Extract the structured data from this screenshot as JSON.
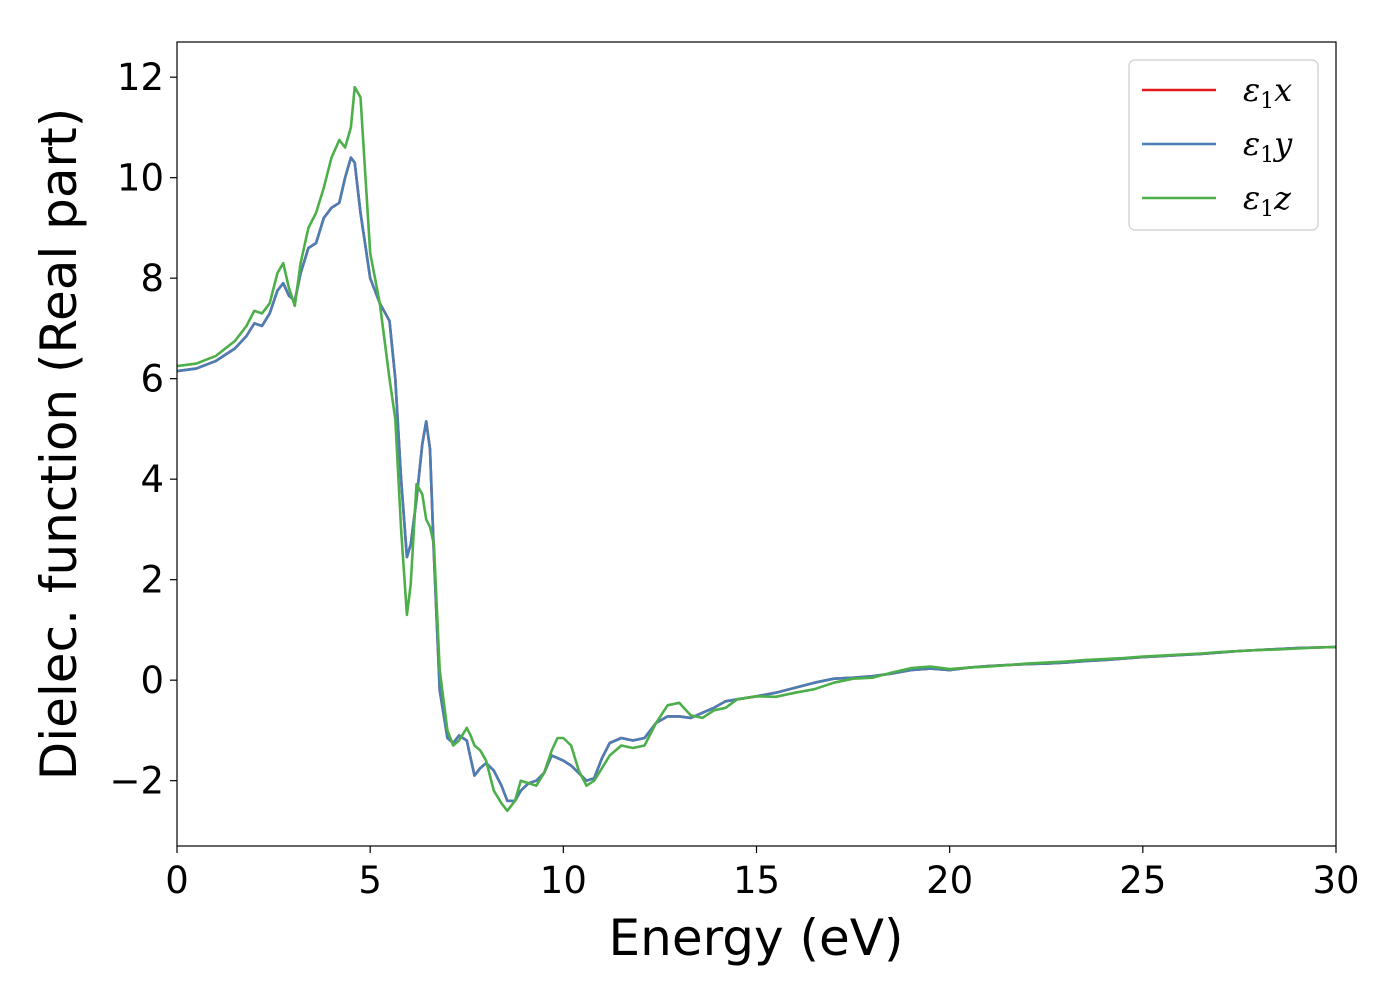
{
  "chart_data": {
    "type": "line",
    "xlabel": "Energy (eV)",
    "ylabel": "Dielec. function (Real part)",
    "xlim": [
      0,
      30
    ],
    "ylim": [
      -3.3,
      12.7
    ],
    "xticks": [
      0,
      5,
      10,
      15,
      20,
      25,
      30
    ],
    "xtick_labels": [
      "0",
      "5",
      "10",
      "15",
      "20",
      "25",
      "30"
    ],
    "yticks": [
      -2,
      0,
      2,
      4,
      6,
      8,
      10,
      12
    ],
    "ytick_labels": [
      "−2",
      "0",
      "2",
      "4",
      "6",
      "8",
      "10",
      "12"
    ],
    "grid": false,
    "legend_position": "top-right",
    "series": [
      {
        "name": "ε₁x",
        "legend": {
          "symbol": "ε",
          "sub": "1",
          "axis": "x"
        },
        "color": "#e41a1c",
        "x": [
          0,
          0.5,
          1.0,
          1.5,
          1.8,
          2.0,
          2.2,
          2.4,
          2.6,
          2.75,
          2.9,
          3.05,
          3.2,
          3.4,
          3.6,
          3.8,
          4.0,
          4.2,
          4.35,
          4.5,
          4.6,
          4.75,
          5.0,
          5.25,
          5.5,
          5.65,
          5.8,
          5.95,
          6.05,
          6.2,
          6.35,
          6.45,
          6.55,
          6.65,
          6.8,
          7.0,
          7.15,
          7.3,
          7.5,
          7.6,
          7.7,
          7.85,
          8.0,
          8.2,
          8.4,
          8.55,
          8.75,
          8.9,
          9.1,
          9.3,
          9.5,
          9.7,
          9.85,
          10.0,
          10.2,
          10.4,
          10.6,
          10.8,
          11.0,
          11.2,
          11.5,
          11.8,
          12.1,
          12.4,
          12.7,
          13.0,
          13.3,
          13.6,
          13.9,
          14.2,
          14.5,
          15.0,
          15.5,
          16.0,
          16.5,
          17.0,
          17.5,
          18.0,
          18.5,
          19.0,
          19.5,
          20.0,
          20.5,
          21.0,
          21.5,
          22.0,
          22.5,
          23.0,
          23.5,
          24.0,
          24.5,
          25.0,
          25.5,
          26.0,
          26.5,
          27.0,
          27.5,
          28.0,
          28.5,
          29.0,
          29.5,
          30.0
        ],
        "y": [
          6.15,
          6.2,
          6.35,
          6.6,
          6.85,
          7.1,
          7.05,
          7.3,
          7.75,
          7.9,
          7.65,
          7.55,
          8.1,
          8.6,
          8.7,
          9.2,
          9.4,
          9.5,
          10.0,
          10.4,
          10.3,
          9.3,
          8.0,
          7.5,
          7.15,
          6.0,
          4.0,
          2.45,
          2.7,
          3.6,
          4.7,
          5.15,
          4.6,
          2.5,
          -0.2,
          -1.15,
          -1.25,
          -1.1,
          -1.2,
          -1.55,
          -1.9,
          -1.75,
          -1.65,
          -1.8,
          -2.1,
          -2.4,
          -2.4,
          -2.2,
          -2.05,
          -2.0,
          -1.85,
          -1.5,
          -1.55,
          -1.6,
          -1.7,
          -1.85,
          -2.0,
          -1.95,
          -1.55,
          -1.25,
          -1.15,
          -1.2,
          -1.15,
          -0.85,
          -0.72,
          -0.72,
          -0.75,
          -0.65,
          -0.55,
          -0.42,
          -0.38,
          -0.32,
          -0.25,
          -0.15,
          -0.05,
          0.03,
          0.05,
          0.08,
          0.13,
          0.2,
          0.23,
          0.2,
          0.25,
          0.28,
          0.3,
          0.32,
          0.33,
          0.35,
          0.38,
          0.4,
          0.43,
          0.46,
          0.48,
          0.5,
          0.52,
          0.55,
          0.58,
          0.6,
          0.62,
          0.64,
          0.65,
          0.66
        ]
      },
      {
        "name": "ε₁y",
        "legend": {
          "symbol": "ε",
          "sub": "1",
          "axis": "y"
        },
        "color": "#4a7fb5",
        "x": [
          0,
          0.5,
          1.0,
          1.5,
          1.8,
          2.0,
          2.2,
          2.4,
          2.6,
          2.75,
          2.9,
          3.05,
          3.2,
          3.4,
          3.6,
          3.8,
          4.0,
          4.2,
          4.35,
          4.5,
          4.6,
          4.75,
          5.0,
          5.25,
          5.5,
          5.65,
          5.8,
          5.95,
          6.05,
          6.2,
          6.35,
          6.45,
          6.55,
          6.65,
          6.8,
          7.0,
          7.15,
          7.3,
          7.5,
          7.6,
          7.7,
          7.85,
          8.0,
          8.2,
          8.4,
          8.55,
          8.75,
          8.9,
          9.1,
          9.3,
          9.5,
          9.7,
          9.85,
          10.0,
          10.2,
          10.4,
          10.6,
          10.8,
          11.0,
          11.2,
          11.5,
          11.8,
          12.1,
          12.4,
          12.7,
          13.0,
          13.3,
          13.6,
          13.9,
          14.2,
          14.5,
          15.0,
          15.5,
          16.0,
          16.5,
          17.0,
          17.5,
          18.0,
          18.5,
          19.0,
          19.5,
          20.0,
          20.5,
          21.0,
          21.5,
          22.0,
          22.5,
          23.0,
          23.5,
          24.0,
          24.5,
          25.0,
          25.5,
          26.0,
          26.5,
          27.0,
          27.5,
          28.0,
          28.5,
          29.0,
          29.5,
          30.0
        ],
        "y": [
          6.15,
          6.2,
          6.35,
          6.6,
          6.85,
          7.1,
          7.05,
          7.3,
          7.75,
          7.9,
          7.65,
          7.55,
          8.1,
          8.6,
          8.7,
          9.2,
          9.4,
          9.5,
          10.0,
          10.4,
          10.3,
          9.3,
          8.0,
          7.5,
          7.15,
          6.0,
          4.0,
          2.45,
          2.7,
          3.6,
          4.7,
          5.15,
          4.6,
          2.5,
          -0.2,
          -1.15,
          -1.25,
          -1.1,
          -1.2,
          -1.55,
          -1.9,
          -1.75,
          -1.65,
          -1.8,
          -2.1,
          -2.4,
          -2.4,
          -2.2,
          -2.05,
          -2.0,
          -1.85,
          -1.5,
          -1.55,
          -1.6,
          -1.7,
          -1.85,
          -2.0,
          -1.95,
          -1.55,
          -1.25,
          -1.15,
          -1.2,
          -1.15,
          -0.85,
          -0.72,
          -0.72,
          -0.75,
          -0.65,
          -0.55,
          -0.42,
          -0.38,
          -0.32,
          -0.25,
          -0.15,
          -0.05,
          0.03,
          0.05,
          0.08,
          0.13,
          0.2,
          0.23,
          0.2,
          0.25,
          0.28,
          0.3,
          0.32,
          0.33,
          0.35,
          0.38,
          0.4,
          0.43,
          0.46,
          0.48,
          0.5,
          0.52,
          0.55,
          0.58,
          0.6,
          0.62,
          0.64,
          0.65,
          0.66
        ]
      },
      {
        "name": "ε₁z",
        "legend": {
          "symbol": "ε",
          "sub": "1",
          "axis": "z"
        },
        "color": "#4daf4a",
        "x": [
          0,
          0.5,
          1.0,
          1.5,
          1.8,
          2.0,
          2.2,
          2.4,
          2.6,
          2.75,
          2.9,
          3.05,
          3.2,
          3.4,
          3.6,
          3.8,
          4.0,
          4.2,
          4.35,
          4.5,
          4.6,
          4.75,
          5.0,
          5.25,
          5.5,
          5.65,
          5.8,
          5.95,
          6.05,
          6.2,
          6.35,
          6.45,
          6.55,
          6.65,
          6.8,
          7.0,
          7.15,
          7.3,
          7.5,
          7.6,
          7.7,
          7.85,
          8.0,
          8.2,
          8.4,
          8.55,
          8.75,
          8.9,
          9.1,
          9.3,
          9.5,
          9.7,
          9.85,
          10.0,
          10.2,
          10.4,
          10.6,
          10.8,
          11.0,
          11.2,
          11.5,
          11.8,
          12.1,
          12.4,
          12.7,
          13.0,
          13.3,
          13.6,
          13.9,
          14.2,
          14.5,
          15.0,
          15.5,
          16.0,
          16.5,
          17.0,
          17.5,
          18.0,
          18.5,
          19.0,
          19.5,
          20.0,
          20.5,
          21.0,
          21.5,
          22.0,
          22.5,
          23.0,
          23.5,
          24.0,
          24.5,
          25.0,
          25.5,
          26.0,
          26.5,
          27.0,
          27.5,
          28.0,
          28.5,
          29.0,
          29.5,
          30.0
        ],
        "y": [
          6.25,
          6.3,
          6.45,
          6.75,
          7.05,
          7.35,
          7.3,
          7.5,
          8.1,
          8.3,
          7.8,
          7.45,
          8.3,
          9.0,
          9.3,
          9.8,
          10.4,
          10.75,
          10.6,
          11.0,
          11.8,
          11.6,
          8.5,
          7.5,
          6.0,
          5.2,
          3.0,
          1.3,
          1.9,
          3.9,
          3.7,
          3.2,
          3.05,
          2.7,
          0.2,
          -1.0,
          -1.3,
          -1.2,
          -0.95,
          -1.1,
          -1.3,
          -1.4,
          -1.6,
          -2.2,
          -2.45,
          -2.6,
          -2.4,
          -2.0,
          -2.05,
          -2.1,
          -1.85,
          -1.4,
          -1.15,
          -1.15,
          -1.3,
          -1.8,
          -2.1,
          -2.0,
          -1.75,
          -1.5,
          -1.3,
          -1.35,
          -1.3,
          -0.85,
          -0.5,
          -0.45,
          -0.7,
          -0.75,
          -0.6,
          -0.55,
          -0.38,
          -0.32,
          -0.33,
          -0.25,
          -0.18,
          -0.05,
          0.03,
          0.05,
          0.15,
          0.24,
          0.27,
          0.22,
          0.25,
          0.27,
          0.3,
          0.33,
          0.35,
          0.37,
          0.4,
          0.42,
          0.44,
          0.47,
          0.49,
          0.51,
          0.53,
          0.56,
          0.58,
          0.6,
          0.61,
          0.63,
          0.65,
          0.66
        ]
      }
    ]
  }
}
